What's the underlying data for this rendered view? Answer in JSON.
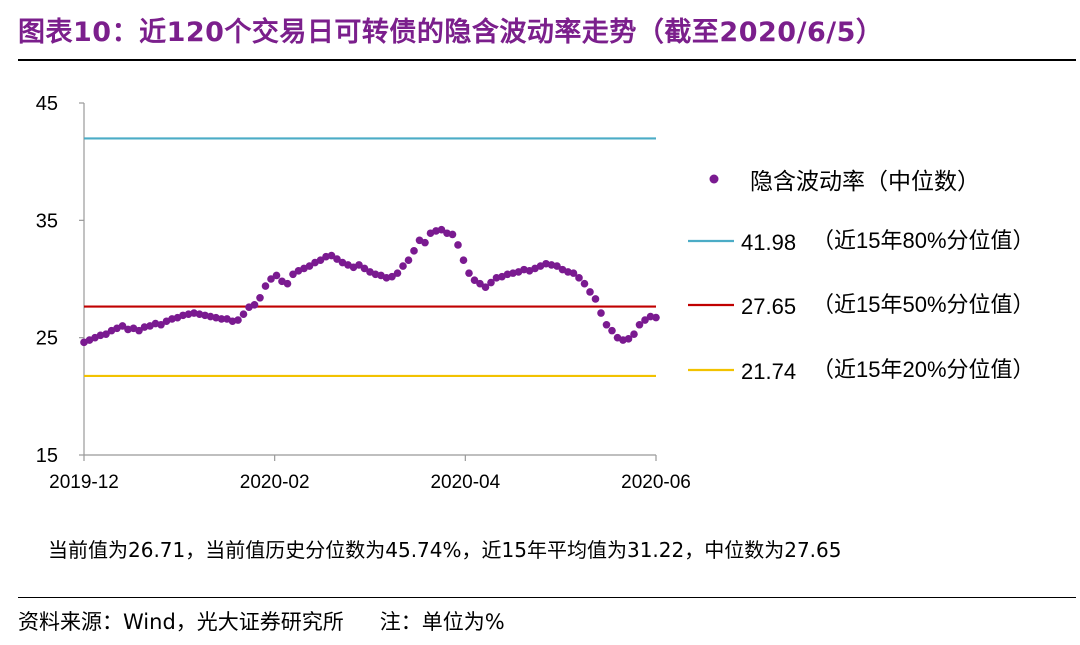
{
  "title": "图表10：近120个交易日可转债的隐含波动率走势（截至2020/6/5）",
  "summary": "当前值为26.71，当前值历史分位数为45.74%，近15年平均值为31.22，中位数为27.65",
  "source": "资料来源：Wind，光大证券研究所",
  "note": "注：单位为%",
  "colors": {
    "title": "#7B1F8C",
    "scatter": "#7A1A90",
    "line80": "#4BACC6",
    "line50": "#C00000",
    "line20": "#F2C200"
  },
  "chart_data": {
    "type": "scatter",
    "ylim": [
      15,
      45
    ],
    "yticks": [
      15,
      25,
      35,
      45
    ],
    "xticks": [
      "2019-12",
      "2020-02",
      "2020-04",
      "2020-06"
    ],
    "legend_position": "right",
    "series": [
      {
        "name": "隐含波动率（中位数）",
        "values": [
          24.6,
          24.8,
          25.0,
          25.2,
          25.3,
          25.6,
          25.8,
          26.0,
          25.7,
          25.8,
          25.6,
          25.9,
          26.0,
          26.2,
          26.1,
          26.4,
          26.6,
          26.7,
          26.9,
          27.0,
          27.1,
          27.0,
          26.9,
          26.8,
          26.7,
          26.6,
          26.6,
          26.4,
          26.5,
          27.0,
          27.6,
          27.8,
          28.4,
          29.4,
          30.0,
          30.3,
          29.8,
          29.6,
          30.4,
          30.7,
          30.9,
          31.1,
          31.4,
          31.6,
          31.9,
          32.0,
          31.7,
          31.4,
          31.2,
          31.0,
          31.2,
          30.9,
          30.6,
          30.4,
          30.3,
          30.1,
          30.2,
          30.5,
          31.1,
          31.6,
          32.4,
          33.3,
          33.1,
          33.9,
          34.1,
          34.2,
          33.9,
          33.8,
          32.9,
          31.6,
          30.5,
          29.9,
          29.6,
          29.3,
          29.7,
          30.1,
          30.2,
          30.4,
          30.5,
          30.6,
          30.8,
          30.7,
          30.9,
          31.1,
          31.3,
          31.2,
          31.1,
          30.8,
          30.6,
          30.5,
          30.1,
          29.6,
          28.9,
          28.3,
          27.1,
          26.1,
          25.6,
          25.0,
          24.8,
          24.9,
          25.3,
          26.1,
          26.5,
          26.8,
          26.71
        ]
      }
    ],
    "reference_lines": [
      {
        "value": 41.98,
        "value_label": "41.98",
        "label": "（近15年80%分位值）",
        "color_key": "line80"
      },
      {
        "value": 27.65,
        "value_label": "27.65",
        "label": "（近15年50%分位值）",
        "color_key": "line50"
      },
      {
        "value": 21.74,
        "value_label": "21.74",
        "label": "（近15年20%分位值）",
        "color_key": "line20"
      }
    ]
  }
}
